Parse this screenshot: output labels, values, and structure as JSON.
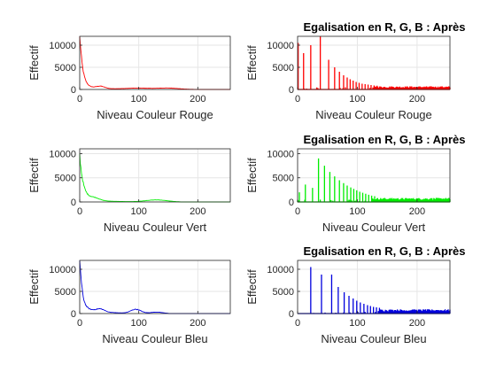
{
  "figure": {
    "background": "#ffffff",
    "axes_color": "#262626",
    "grid_color": "#e6e6e6"
  },
  "chart_data": [
    {
      "panel": "left-row-1",
      "type": "line",
      "title": "",
      "xlabel": "Niveau Couleur Rouge",
      "ylabel": "Effectif",
      "color": "#ff0000",
      "xlim": [
        0,
        255
      ],
      "ylim": [
        0,
        12000
      ],
      "xticks": [
        0,
        100,
        200
      ],
      "xticklabels": [
        "0",
        "100",
        "200"
      ],
      "yticks": [
        0,
        5000,
        10000
      ],
      "yticklabels": [
        "0",
        "5000",
        "10000"
      ],
      "grid": true,
      "shape": "decay",
      "peak": 12000,
      "decay_tau": 5,
      "floor": 600,
      "floor_decay": 40,
      "bumps": [
        [
          35,
          500,
          10
        ],
        [
          100,
          250,
          30
        ],
        [
          150,
          300,
          25
        ]
      ],
      "noise": 0.06,
      "end": 200
    },
    {
      "panel": "right-row-1",
      "type": "line",
      "title": "Egalisation en R, G, B : Après",
      "xlabel": "Niveau Couleur Rouge",
      "ylabel": "Effectif",
      "color": "#ff0000",
      "xlim": [
        0,
        255
      ],
      "ylim": [
        0,
        12000
      ],
      "xticks": [
        0,
        100,
        200
      ],
      "xticklabels": [
        "0",
        "100",
        "200"
      ],
      "yticks": [
        0,
        5000,
        10000
      ],
      "yticklabels": [
        "0",
        "5000",
        "10000"
      ],
      "grid": true,
      "shape": "spikes",
      "spikes": [
        [
          1,
          10500
        ],
        [
          10,
          8200
        ],
        [
          22,
          10000
        ],
        [
          38,
          12000
        ],
        [
          52,
          6700
        ],
        [
          62,
          5000
        ],
        [
          70,
          4000
        ],
        [
          77,
          3200
        ],
        [
          83,
          2700
        ],
        [
          88,
          2300
        ],
        [
          93,
          2000
        ],
        [
          98,
          1700
        ],
        [
          103,
          1500
        ],
        [
          108,
          1300
        ],
        [
          113,
          1200
        ],
        [
          118,
          1100
        ],
        [
          123,
          1000
        ],
        [
          128,
          900
        ],
        [
          133,
          850
        ]
      ],
      "baseline": 500,
      "dense_from": 130,
      "dense_level": 600
    },
    {
      "panel": "left-row-2",
      "type": "line",
      "title": "",
      "xlabel": "Niveau Couleur Vert",
      "ylabel": "Effectif",
      "color": "#00ee00",
      "xlim": [
        0,
        255
      ],
      "ylim": [
        0,
        11000
      ],
      "xticks": [
        0,
        100,
        200
      ],
      "xticklabels": [
        "0",
        "100",
        "200"
      ],
      "yticks": [
        0,
        5000,
        10000
      ],
      "yticklabels": [
        "0",
        "5000",
        "10000"
      ],
      "grid": true,
      "shape": "decay",
      "peak": 9000,
      "decay_tau": 6,
      "floor": 700,
      "floor_decay": 35,
      "bumps": [
        [
          25,
          500,
          12
        ],
        [
          130,
          400,
          25
        ]
      ],
      "noise": 0.06,
      "end": 170
    },
    {
      "panel": "right-row-2",
      "type": "line",
      "title": "Egalisation en R, G, B : Après",
      "xlabel": "Niveau Couleur Vert",
      "ylabel": "Effectif",
      "color": "#00ee00",
      "xlim": [
        0,
        255
      ],
      "ylim": [
        0,
        11000
      ],
      "xticks": [
        0,
        100,
        200
      ],
      "xticklabels": [
        "0",
        "100",
        "200"
      ],
      "yticks": [
        0,
        5000,
        10000
      ],
      "yticklabels": [
        "0",
        "5000",
        "10000"
      ],
      "grid": true,
      "shape": "spikes",
      "spikes": [
        [
          3,
          2000
        ],
        [
          13,
          3600
        ],
        [
          25,
          2900
        ],
        [
          35,
          9000
        ],
        [
          45,
          7500
        ],
        [
          54,
          6200
        ],
        [
          62,
          5300
        ],
        [
          70,
          4500
        ],
        [
          77,
          3900
        ],
        [
          83,
          3400
        ],
        [
          89,
          3000
        ],
        [
          94,
          2700
        ],
        [
          99,
          2400
        ],
        [
          104,
          2100
        ],
        [
          109,
          1900
        ],
        [
          114,
          1700
        ],
        [
          119,
          1500
        ],
        [
          124,
          1300
        ],
        [
          129,
          1200
        ]
      ],
      "baseline": 500,
      "dense_from": 125,
      "dense_level": 700
    },
    {
      "panel": "left-row-3",
      "type": "line",
      "title": "",
      "xlabel": "Niveau Couleur Bleu",
      "ylabel": "Effectif",
      "color": "#0000dd",
      "xlim": [
        0,
        255
      ],
      "ylim": [
        0,
        12000
      ],
      "xticks": [
        0,
        100,
        200
      ],
      "xticklabels": [
        "0",
        "100",
        "200"
      ],
      "yticks": [
        0,
        5000,
        10000
      ],
      "yticklabels": [
        "0",
        "5000",
        "10000"
      ],
      "grid": true,
      "shape": "decay",
      "peak": 11500,
      "decay_tau": 4,
      "floor": 1500,
      "floor_decay": 30,
      "bumps": [
        [
          35,
          600,
          10
        ],
        [
          95,
          900,
          12
        ],
        [
          130,
          300,
          15
        ]
      ],
      "noise": 0.08,
      "end": 150
    },
    {
      "panel": "right-row-3",
      "type": "line",
      "title": "Egalisation en R, G, B : Après",
      "xlabel": "Niveau Couleur Bleu",
      "ylabel": "Effectif",
      "color": "#0000dd",
      "xlim": [
        0,
        255
      ],
      "ylim": [
        0,
        12000
      ],
      "xticks": [
        0,
        100,
        200
      ],
      "xticklabels": [
        "0",
        "100",
        "200"
      ],
      "yticks": [
        0,
        5000,
        10000
      ],
      "yticklabels": [
        "0",
        "5000",
        "10000"
      ],
      "grid": true,
      "shape": "spikes",
      "spikes": [
        [
          22,
          10500
        ],
        [
          40,
          8800
        ],
        [
          57,
          8800
        ],
        [
          68,
          6000
        ],
        [
          78,
          4800
        ],
        [
          86,
          4000
        ],
        [
          93,
          3400
        ],
        [
          99,
          2900
        ],
        [
          105,
          2500
        ],
        [
          111,
          2200
        ],
        [
          117,
          1900
        ],
        [
          122,
          1700
        ],
        [
          127,
          1500
        ],
        [
          132,
          1400
        ],
        [
          137,
          1300
        ]
      ],
      "baseline": 400,
      "dense_from": 135,
      "dense_level": 800
    }
  ]
}
